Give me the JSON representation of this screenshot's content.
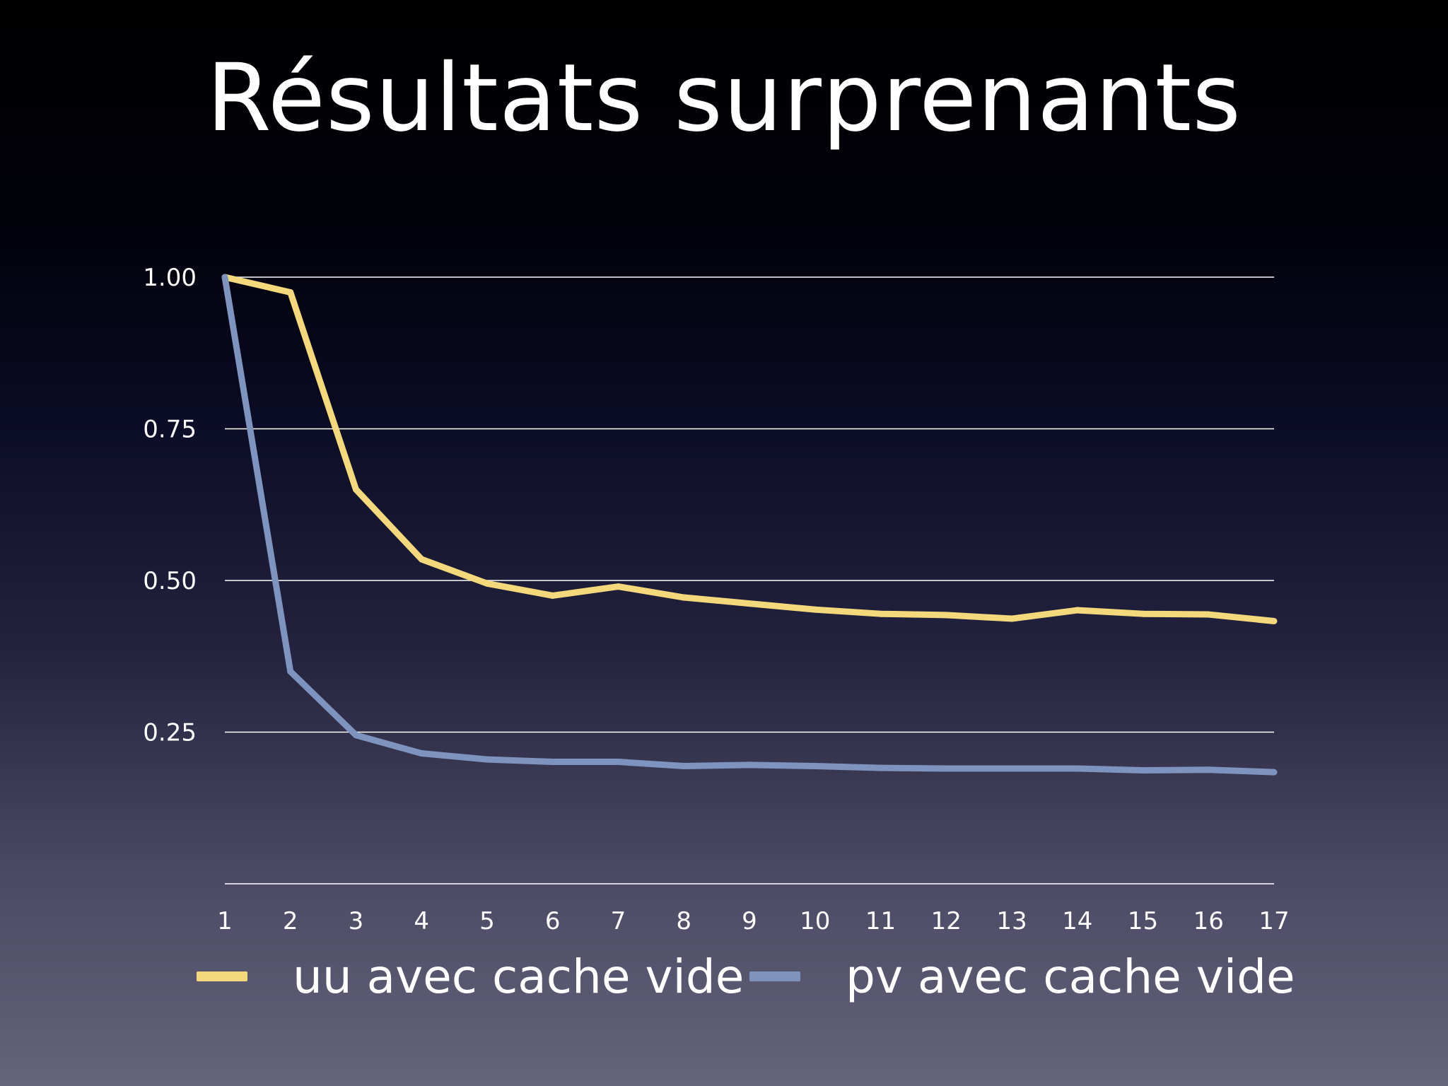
{
  "title": "Résultats surprenants",
  "colors": {
    "uu": "#f4d97c",
    "pv": "#7f93bf",
    "grid": "#ffffff"
  },
  "chart_data": {
    "type": "line",
    "title": "Résultats surprenants",
    "xlabel": "",
    "ylabel": "",
    "x": [
      1,
      2,
      3,
      4,
      5,
      6,
      7,
      8,
      9,
      10,
      11,
      12,
      13,
      14,
      15,
      16,
      17
    ],
    "x_tick_labels": [
      "1",
      "2",
      "3",
      "4",
      "5",
      "6",
      "7",
      "8",
      "9",
      "10",
      "11",
      "12",
      "13",
      "14",
      "15",
      "16",
      "17"
    ],
    "y_ticks": [
      0.25,
      0.5,
      0.75,
      1.0
    ],
    "y_tick_labels": [
      "0.25",
      "0.50",
      "0.75",
      "1.00"
    ],
    "ylim": [
      0,
      1
    ],
    "grid": true,
    "legend_position": "bottom",
    "series": [
      {
        "name": "uu avec cache vide",
        "color": "#f4d97c",
        "values": [
          1.0,
          0.975,
          0.65,
          0.535,
          0.495,
          0.475,
          0.49,
          0.472,
          0.462,
          0.452,
          0.445,
          0.443,
          0.437,
          0.451,
          0.445,
          0.444,
          0.433
        ]
      },
      {
        "name": "pv avec cache vide",
        "color": "#7f93bf",
        "values": [
          1.0,
          0.35,
          0.245,
          0.215,
          0.205,
          0.201,
          0.201,
          0.194,
          0.196,
          0.194,
          0.191,
          0.19,
          0.19,
          0.19,
          0.187,
          0.188,
          0.184
        ]
      }
    ]
  },
  "legend": [
    {
      "label": "uu avec cache vide",
      "color": "#f4d97c"
    },
    {
      "label": "pv avec cache vide",
      "color": "#7f93bf"
    }
  ]
}
